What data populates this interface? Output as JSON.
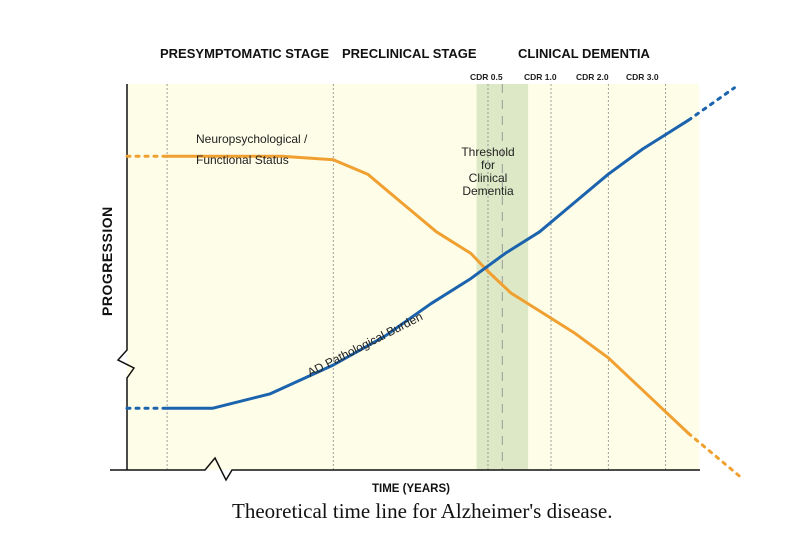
{
  "chart_data": {
    "type": "line",
    "title": "Theoretical time line for Alzheimer's disease.",
    "xlabel": "TIME (YEARS)",
    "ylabel": "PROGRESSION",
    "stages": [
      "PRESYMPTOMATIC STAGE",
      "PRECLINICAL STAGE",
      "CLINICAL DEMENTIA"
    ],
    "cdr_labels": [
      "CDR 0.5",
      "CDR 1.0",
      "CDR 2.0",
      "CDR 3.0"
    ],
    "threshold_label": [
      "Threshold",
      "for",
      "Clinical",
      "Dementia"
    ],
    "xlim": [
      0,
      100
    ],
    "ylim": [
      0,
      100
    ],
    "gridlines_x": [
      7,
      36,
      63,
      74,
      84,
      94
    ],
    "threshold_band": [
      61,
      70
    ],
    "threshold_x": 65.5,
    "series": [
      {
        "name": "Neuropsychological / Functional Status",
        "label_lines": [
          "Neuropsychological /",
          "Functional Status"
        ],
        "color": "#f0a030",
        "points": [
          [
            7,
            83
          ],
          [
            16,
            83
          ],
          [
            27,
            83
          ],
          [
            36,
            82
          ],
          [
            42,
            78
          ],
          [
            48,
            70
          ],
          [
            54,
            62
          ],
          [
            60,
            56
          ],
          [
            63,
            51
          ],
          [
            67,
            45
          ],
          [
            72,
            40
          ],
          [
            78,
            34
          ],
          [
            84,
            27
          ],
          [
            90,
            18
          ],
          [
            94,
            12
          ],
          [
            98,
            6
          ]
        ],
        "dotted_start": [
          [
            0,
            83
          ],
          [
            7,
            83
          ]
        ],
        "dotted_end": [
          [
            98,
            6
          ],
          [
            107,
            -6
          ]
        ]
      },
      {
        "name": "AD Pathological Burden",
        "label_lines": [
          "AD Pathological Burden"
        ],
        "color": "#1b63ad",
        "points": [
          [
            7,
            13
          ],
          [
            15,
            13
          ],
          [
            25,
            17
          ],
          [
            36,
            25
          ],
          [
            45,
            33
          ],
          [
            53,
            42
          ],
          [
            60,
            49
          ],
          [
            66,
            56
          ],
          [
            72,
            62
          ],
          [
            78,
            70
          ],
          [
            84,
            78
          ],
          [
            90,
            85
          ],
          [
            94,
            89
          ],
          [
            98,
            93
          ]
        ],
        "dotted_start": [
          [
            0,
            13
          ],
          [
            7,
            13
          ]
        ],
        "dotted_end": [
          [
            98,
            93
          ],
          [
            106,
            102
          ]
        ]
      }
    ]
  }
}
